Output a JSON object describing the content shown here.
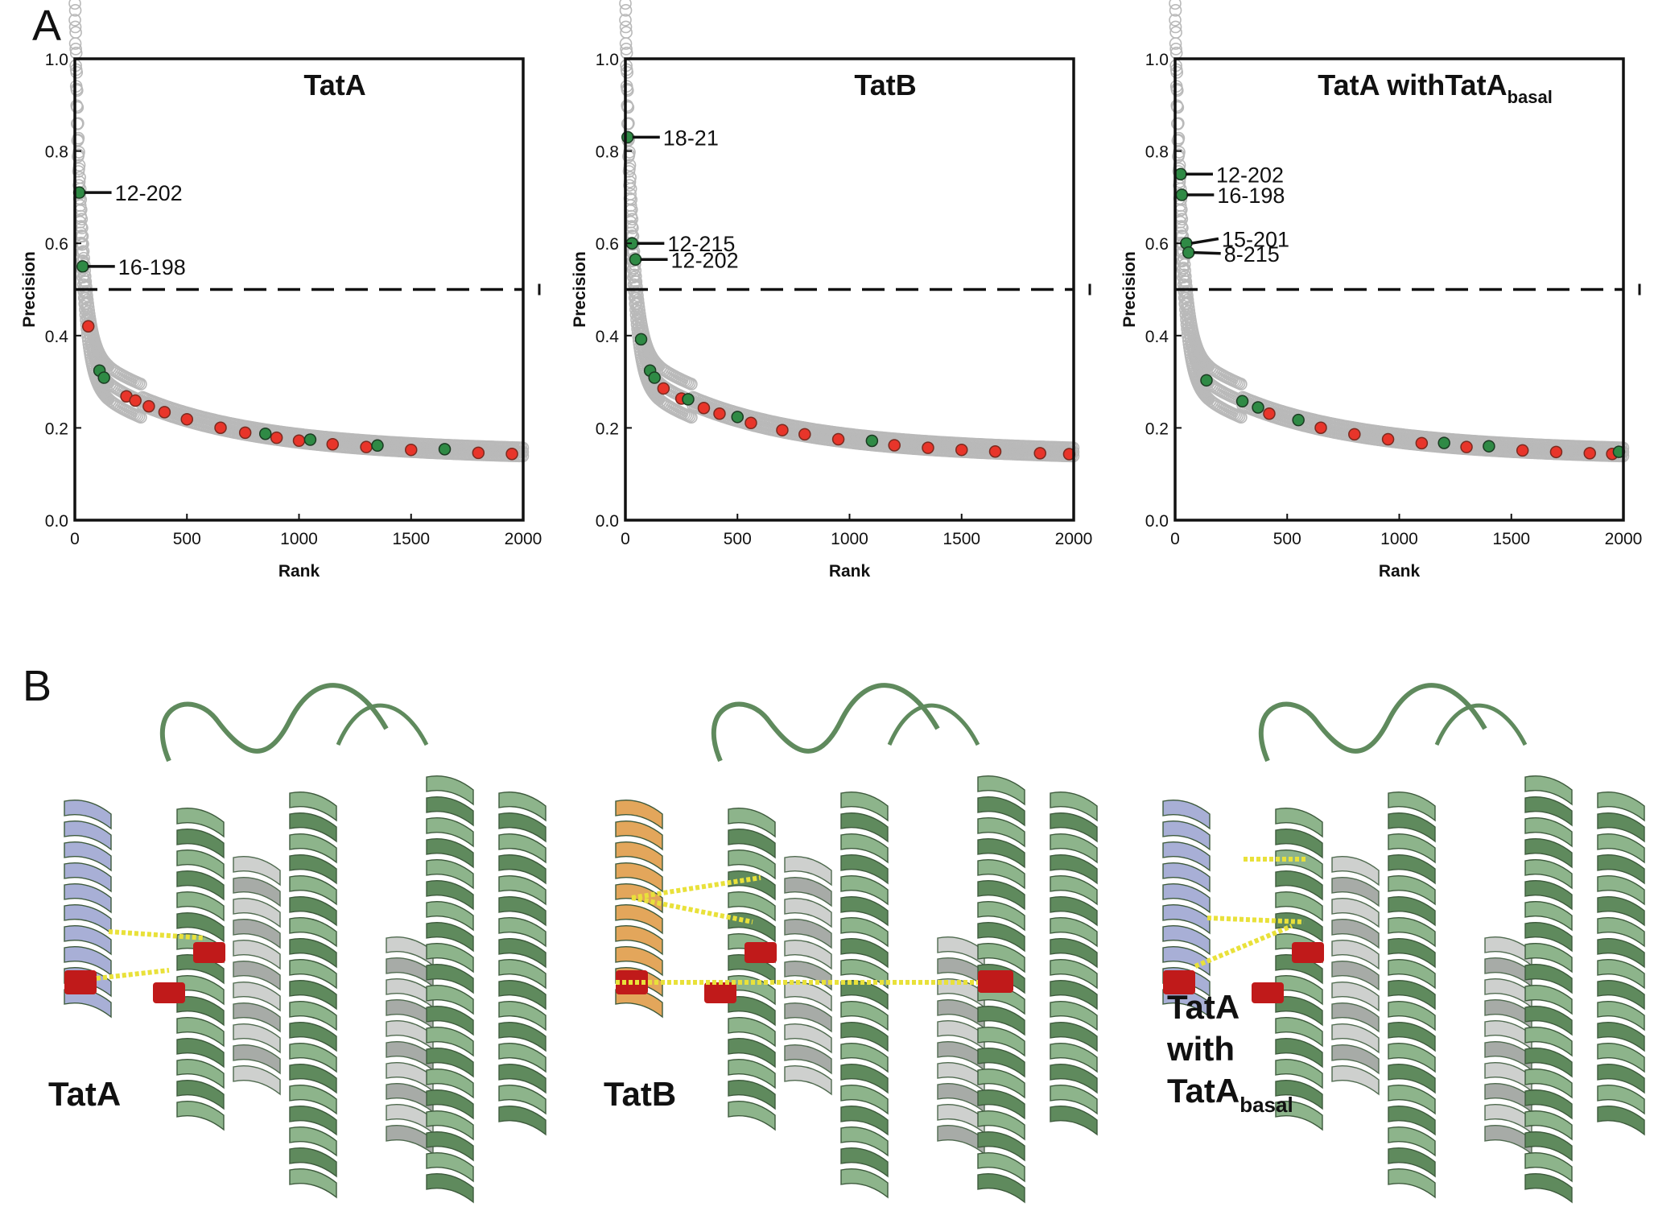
{
  "panel_a_label": "A",
  "panel_b_label": "B",
  "colors": {
    "grey": "#b9b9b9",
    "green": "#2f8a45",
    "red": "#e8352a",
    "helix": "#8db48b",
    "helix_dark": "#5f8a5d",
    "tata": "#a8afd6",
    "tatb": "#e3a65b",
    "contact": "#e9e13a",
    "highlight": "#c01a1a"
  },
  "chart_data": [
    {
      "type": "scatter",
      "title": "TatA",
      "title_sub": "",
      "xlabel": "Rank",
      "ylabel": "Precision",
      "xlim": [
        0,
        2000
      ],
      "ylim": [
        0.0,
        1.0
      ],
      "xticks": [
        "0",
        "500",
        "1000",
        "1500",
        "2000"
      ],
      "yticks": [
        "0.0",
        "0.2",
        "0.4",
        "0.6",
        "0.8",
        "1.0"
      ],
      "threshold": 0.5,
      "annotations": [
        {
          "label": "12-202",
          "rank": 20,
          "precision": 0.71
        },
        {
          "label": "16-198",
          "rank": 35,
          "precision": 0.55
        }
      ],
      "green_ranks": [
        20,
        35,
        110,
        130,
        850,
        1050,
        1350,
        1650
      ],
      "red_ranks": [
        60,
        230,
        270,
        330,
        400,
        500,
        650,
        760,
        900,
        1000,
        1150,
        1300,
        1500,
        1800,
        1950
      ]
    },
    {
      "type": "scatter",
      "title": "TatB",
      "title_sub": "",
      "xlabel": "Rank",
      "ylabel": "Precision",
      "xlim": [
        0,
        2000
      ],
      "ylim": [
        0.0,
        1.0
      ],
      "xticks": [
        "0",
        "500",
        "1000",
        "1500",
        "2000"
      ],
      "yticks": [
        "0.0",
        "0.2",
        "0.4",
        "0.6",
        "0.8",
        "1.0"
      ],
      "threshold": 0.5,
      "annotations": [
        {
          "label": "18-21",
          "rank": 10,
          "precision": 0.83
        },
        {
          "label": "12-215",
          "rank": 30,
          "precision": 0.6
        },
        {
          "label": "12-202",
          "rank": 45,
          "precision": 0.565
        }
      ],
      "green_ranks": [
        10,
        30,
        45,
        70,
        110,
        130,
        280,
        500,
        1100
      ],
      "red_ranks": [
        170,
        250,
        350,
        420,
        560,
        700,
        800,
        950,
        1200,
        1350,
        1500,
        1650,
        1850,
        1980
      ]
    },
    {
      "type": "scatter",
      "title": "TatA withTatA",
      "title_sub": "basal",
      "xlabel": "Rank",
      "ylabel": "Precision",
      "xlim": [
        0,
        2000
      ],
      "ylim": [
        0.0,
        1.0
      ],
      "xticks": [
        "0",
        "500",
        "1000",
        "1500",
        "2000"
      ],
      "yticks": [
        "0.0",
        "0.2",
        "0.4",
        "0.6",
        "0.8",
        "1.0"
      ],
      "threshold": 0.5,
      "annotations": [
        {
          "label": "12-202",
          "rank": 25,
          "precision": 0.75
        },
        {
          "label": "16-198",
          "rank": 30,
          "precision": 0.705
        },
        {
          "label": "15-201",
          "rank": 50,
          "precision": 0.6
        },
        {
          "label": "8-215",
          "rank": 60,
          "precision": 0.58
        }
      ],
      "green_ranks": [
        25,
        30,
        50,
        60,
        140,
        300,
        370,
        550,
        1200,
        1400,
        1980
      ],
      "red_ranks": [
        420,
        650,
        800,
        950,
        1100,
        1300,
        1550,
        1700,
        1850,
        1950
      ]
    }
  ],
  "structures": [
    {
      "label": "TatA",
      "label_sub": "",
      "partner": "tata",
      "contacts": 2
    },
    {
      "label": "TatB",
      "label_sub": "",
      "partner": "tatb",
      "contacts": 3
    },
    {
      "label": "TatA\nwith\nTatA",
      "label_sub": "basal",
      "partner": "tata",
      "contacts": 3
    }
  ],
  "structure_labels": [
    {
      "lines": [
        "TatA"
      ],
      "sub": ""
    },
    {
      "lines": [
        "TatB"
      ],
      "sub": ""
    },
    {
      "lines": [
        "TatA",
        "with",
        "TatA"
      ],
      "sub": "basal"
    }
  ]
}
